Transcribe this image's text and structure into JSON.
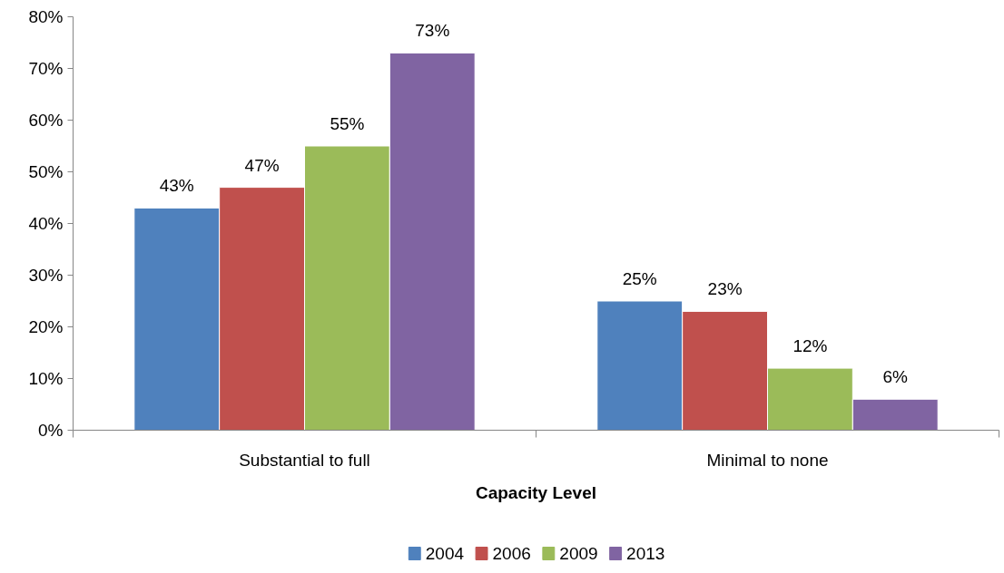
{
  "chart_data": {
    "type": "bar",
    "xlabel": "Capacity Level",
    "categories": [
      "Substantial to full",
      "Minimal to none"
    ],
    "series": [
      {
        "name": "2004",
        "color": "#4f81bd",
        "values": [
          43,
          25
        ],
        "value_labels": [
          "43%",
          "25%"
        ]
      },
      {
        "name": "2006",
        "color": "#c0504d",
        "values": [
          47,
          23
        ],
        "value_labels": [
          "47%",
          "23%"
        ]
      },
      {
        "name": "2009",
        "color": "#9bbb59",
        "values": [
          55,
          12
        ],
        "value_labels": [
          "55%",
          "12%"
        ]
      },
      {
        "name": "2013",
        "color": "#8064a2",
        "values": [
          73,
          6
        ],
        "value_labels": [
          "73%",
          "6%"
        ]
      }
    ],
    "ylim": [
      0,
      80
    ],
    "yticks": [
      {
        "value": 0,
        "label": "0%"
      },
      {
        "value": 10,
        "label": "10%"
      },
      {
        "value": 20,
        "label": "20%"
      },
      {
        "value": 30,
        "label": "30%"
      },
      {
        "value": 40,
        "label": "40%"
      },
      {
        "value": 50,
        "label": "50%"
      },
      {
        "value": 60,
        "label": "60%"
      },
      {
        "value": 70,
        "label": "70%"
      },
      {
        "value": 80,
        "label": "80%"
      }
    ],
    "grid": false,
    "legend": "bottom"
  }
}
